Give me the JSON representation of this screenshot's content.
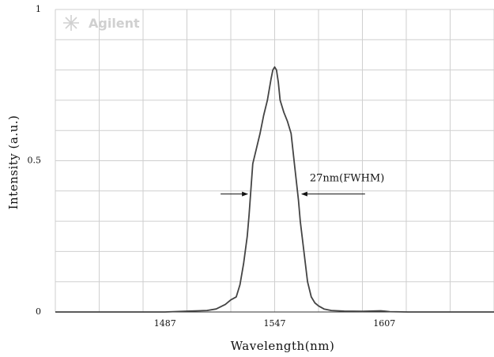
{
  "chart_data": {
    "type": "line",
    "title": "",
    "xlabel": "Wavelength(nm)",
    "ylabel": "Intensity (a.u.)",
    "xlim": [
      1427,
      1667
    ],
    "ylim": [
      0,
      1
    ],
    "x_ticks": [
      1487,
      1547,
      1607
    ],
    "y_ticks": [
      {
        "value": 0,
        "label": "0"
      },
      {
        "value": 0.5,
        "label": "0.5"
      },
      {
        "value": 1,
        "label": "1"
      }
    ],
    "grid": true,
    "legend": "none",
    "annotation": {
      "text": "27nm(FWHM)",
      "level": 0.39,
      "left_x": 1533,
      "right_x": 1561
    },
    "watermark": "Agilent",
    "colors": {
      "line": "#444444",
      "grid": "#cfcfcf",
      "watermark": "#d0d0d0"
    },
    "series": [
      {
        "x": [
          1427,
          1487,
          1500,
          1510,
          1515,
          1520,
          1523,
          1526,
          1528,
          1530,
          1532,
          1533,
          1535,
          1537,
          1539,
          1541,
          1543,
          1545,
          1546,
          1547,
          1548,
          1549,
          1550,
          1552,
          1554,
          1556,
          1558,
          1560,
          1561,
          1563,
          1565,
          1567,
          1569,
          1571,
          1574,
          1578,
          1585,
          1595,
          1605,
          1607,
          1610,
          1620,
          1667
        ],
        "y": [
          0,
          0,
          0.003,
          0.005,
          0.01,
          0.025,
          0.04,
          0.05,
          0.09,
          0.16,
          0.25,
          0.32,
          0.49,
          0.54,
          0.59,
          0.65,
          0.7,
          0.77,
          0.8,
          0.81,
          0.8,
          0.76,
          0.7,
          0.66,
          0.63,
          0.59,
          0.48,
          0.37,
          0.3,
          0.2,
          0.1,
          0.05,
          0.03,
          0.02,
          0.01,
          0.005,
          0.003,
          0.002,
          0.004,
          0.003,
          0.001,
          0,
          0
        ]
      }
    ]
  }
}
